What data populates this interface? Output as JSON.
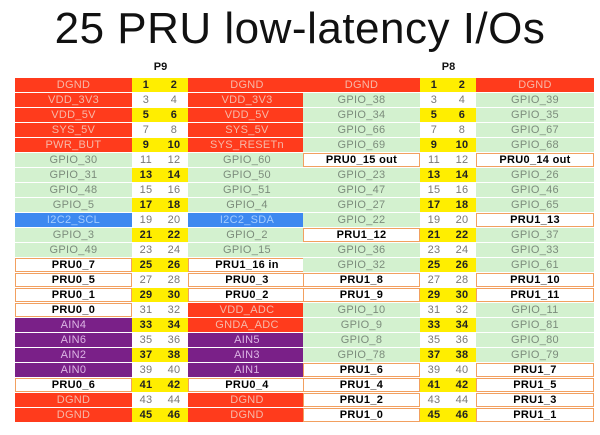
{
  "title": "25 PRU low-latency I/Os",
  "headers": [
    {
      "label": "P9",
      "rows": [
        [
          "DGND",
          1,
          2,
          "DGND"
        ],
        [
          "VDD_3V3",
          3,
          4,
          "VDD_3V3"
        ],
        [
          "VDD_5V",
          5,
          6,
          "VDD_5V"
        ],
        [
          "SYS_5V",
          7,
          8,
          "SYS_5V"
        ],
        [
          "PWR_BUT",
          9,
          10,
          "SYS_RESETn"
        ],
        [
          "GPIO_30",
          11,
          12,
          "GPIO_60"
        ],
        [
          "GPIO_31",
          13,
          14,
          "GPIO_50"
        ],
        [
          "GPIO_48",
          15,
          16,
          "GPIO_51"
        ],
        [
          "GPIO_5",
          17,
          18,
          "GPIO_4"
        ],
        [
          "I2C2_SCL",
          19,
          20,
          "I2C2_SDA"
        ],
        [
          "GPIO_3",
          21,
          22,
          "GPIO_2"
        ],
        [
          "GPIO_49",
          23,
          24,
          "GPIO_15"
        ],
        [
          "PRU0_7",
          25,
          26,
          "PRU1_16 in"
        ],
        [
          "PRU0_5",
          27,
          28,
          "PRU0_3"
        ],
        [
          "PRU0_1",
          29,
          30,
          "PRU0_2"
        ],
        [
          "PRU0_0",
          31,
          32,
          "VDD_ADC"
        ],
        [
          "AIN4",
          33,
          34,
          "GNDA_ADC"
        ],
        [
          "AIN6",
          35,
          36,
          "AIN5"
        ],
        [
          "AIN2",
          37,
          38,
          "AIN3"
        ],
        [
          "AIN0",
          39,
          40,
          "AIN1"
        ],
        [
          "PRU0_6",
          41,
          42,
          "PRU0_4"
        ],
        [
          "DGND",
          43,
          44,
          "DGND"
        ],
        [
          "DGND",
          45,
          46,
          "DGND"
        ]
      ]
    },
    {
      "label": "P8",
      "rows": [
        [
          "DGND",
          1,
          2,
          "DGND"
        ],
        [
          "GPIO_38",
          3,
          4,
          "GPIO_39"
        ],
        [
          "GPIO_34",
          5,
          6,
          "GPIO_35"
        ],
        [
          "GPIO_66",
          7,
          8,
          "GPIO_67"
        ],
        [
          "GPIO_69",
          9,
          10,
          "GPIO_68"
        ],
        [
          "PRU0_15 out",
          11,
          12,
          "PRU0_14 out"
        ],
        [
          "GPIO_23",
          13,
          14,
          "GPIO_26"
        ],
        [
          "GPIO_47",
          15,
          16,
          "GPIO_46"
        ],
        [
          "GPIO_27",
          17,
          18,
          "GPIO_65"
        ],
        [
          "GPIO_22",
          19,
          20,
          "PRU1_13"
        ],
        [
          "PRU1_12",
          21,
          22,
          "GPIO_37"
        ],
        [
          "GPIO_36",
          23,
          24,
          "GPIO_33"
        ],
        [
          "GPIO_32",
          25,
          26,
          "GPIO_61"
        ],
        [
          "PRU1_8",
          27,
          28,
          "PRU1_10"
        ],
        [
          "PRU1_9",
          29,
          30,
          "PRU1_11"
        ],
        [
          "GPIO_10",
          31,
          32,
          "GPIO_11"
        ],
        [
          "GPIO_9",
          33,
          34,
          "GPIO_81"
        ],
        [
          "GPIO_8",
          35,
          36,
          "GPIO_80"
        ],
        [
          "GPIO_78",
          37,
          38,
          "GPIO_79"
        ],
        [
          "PRU1_6",
          39,
          40,
          "PRU1_7"
        ],
        [
          "PRU1_4",
          41,
          42,
          "PRU1_5"
        ],
        [
          "PRU1_2",
          43,
          44,
          "PRU1_3"
        ],
        [
          "PRU1_0",
          45,
          46,
          "PRU1_1"
        ]
      ]
    }
  ]
}
